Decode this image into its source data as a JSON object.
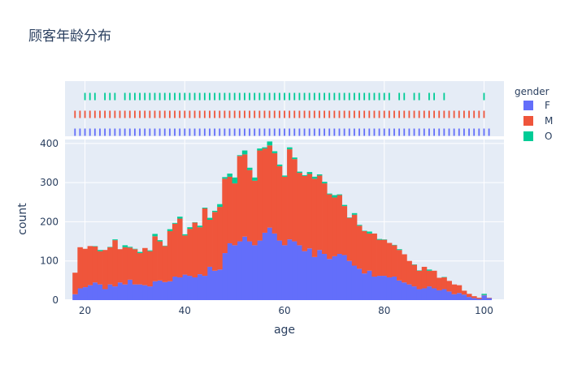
{
  "chart_data": {
    "type": "bar",
    "stacked": true,
    "title": "顾客年龄分布",
    "xlabel": "age",
    "ylabel": "count",
    "xlim": [
      16,
      104
    ],
    "ylim": [
      0,
      410
    ],
    "x_ticks": [
      20,
      40,
      60,
      80,
      100
    ],
    "y_ticks": [
      0,
      100,
      200,
      300,
      400
    ],
    "legend_title": "gender",
    "legend_position": "top-right",
    "grid": true,
    "categories": [
      18,
      19,
      20,
      21,
      22,
      23,
      24,
      25,
      26,
      27,
      28,
      29,
      30,
      31,
      32,
      33,
      34,
      35,
      36,
      37,
      38,
      39,
      40,
      41,
      42,
      43,
      44,
      45,
      46,
      47,
      48,
      49,
      50,
      51,
      52,
      53,
      54,
      55,
      56,
      57,
      58,
      59,
      60,
      61,
      62,
      63,
      64,
      65,
      66,
      67,
      68,
      69,
      70,
      71,
      72,
      73,
      74,
      75,
      76,
      77,
      78,
      79,
      80,
      81,
      82,
      83,
      84,
      85,
      86,
      87,
      88,
      89,
      90,
      91,
      92,
      93,
      94,
      95,
      96,
      97,
      98,
      99,
      100,
      101
    ],
    "series": [
      {
        "name": "F",
        "color": "#636efa",
        "values": [
          15,
          30,
          33,
          38,
          45,
          40,
          28,
          40,
          35,
          45,
          40,
          52,
          40,
          40,
          38,
          35,
          48,
          50,
          46,
          48,
          60,
          58,
          65,
          62,
          58,
          66,
          62,
          85,
          75,
          78,
          120,
          145,
          140,
          150,
          162,
          150,
          140,
          152,
          172,
          185,
          170,
          152,
          140,
          155,
          150,
          140,
          125,
          132,
          110,
          128,
          118,
          105,
          112,
          118,
          115,
          100,
          88,
          80,
          68,
          75,
          60,
          62,
          62,
          58,
          60,
          50,
          45,
          40,
          35,
          28,
          30,
          35,
          30,
          25,
          28,
          22,
          15,
          18,
          14,
          8,
          5,
          3,
          12,
          5
        ]
      },
      {
        "name": "M",
        "color": "#ef553b",
        "values": [
          55,
          105,
          98,
          100,
          92,
          85,
          100,
          95,
          118,
          85,
          95,
          82,
          90,
          80,
          95,
          90,
          115,
          100,
          92,
          128,
          135,
          150,
          100,
          120,
          140,
          120,
          172,
          120,
          150,
          160,
          190,
          170,
          158,
          218,
          210,
          182,
          165,
          230,
          215,
          210,
          205,
          190,
          175,
          230,
          210,
          185,
          192,
          190,
          200,
          190,
          180,
          165,
          150,
          150,
          125,
          110,
          130,
          110,
          108,
          95,
          110,
          92,
          92,
          88,
          80,
          78,
          72,
          60,
          55,
          47,
          55,
          40,
          45,
          32,
          30,
          27,
          25,
          20,
          10,
          8,
          5,
          3,
          1,
          1
        ]
      },
      {
        "name": "O",
        "color": "#00cc96",
        "values": [
          0,
          0,
          0,
          0,
          1,
          3,
          0,
          1,
          2,
          0,
          5,
          2,
          1,
          3,
          0,
          2,
          6,
          3,
          1,
          5,
          2,
          5,
          3,
          4,
          1,
          4,
          2,
          5,
          3,
          7,
          4,
          8,
          15,
          2,
          10,
          6,
          8,
          5,
          3,
          10,
          5,
          4,
          3,
          5,
          4,
          3,
          2,
          5,
          5,
          3,
          4,
          2,
          6,
          2,
          3,
          1,
          4,
          2,
          1,
          5,
          0,
          2,
          1,
          0,
          1,
          2,
          0,
          0,
          1,
          1,
          0,
          3,
          0,
          0,
          1,
          0,
          0,
          0,
          0,
          0,
          0,
          0,
          3,
          0
        ]
      }
    ],
    "rug_rows": [
      {
        "name": "F",
        "color": "#636efa",
        "x": [
          18,
          19,
          20,
          21,
          22,
          23,
          24,
          25,
          26,
          27,
          28,
          29,
          30,
          31,
          32,
          33,
          34,
          35,
          36,
          37,
          38,
          39,
          40,
          41,
          42,
          43,
          44,
          45,
          46,
          47,
          48,
          49,
          50,
          51,
          52,
          53,
          54,
          55,
          56,
          57,
          58,
          59,
          60,
          61,
          62,
          63,
          64,
          65,
          66,
          67,
          68,
          69,
          70,
          71,
          72,
          73,
          74,
          75,
          76,
          77,
          78,
          79,
          80,
          81,
          82,
          83,
          84,
          85,
          86,
          87,
          88,
          89,
          90,
          91,
          92,
          93,
          94,
          95,
          96,
          97,
          98,
          99,
          100,
          101
        ]
      },
      {
        "name": "M",
        "color": "#ef553b",
        "x": [
          18,
          19,
          20,
          21,
          22,
          23,
          24,
          25,
          26,
          27,
          28,
          29,
          30,
          31,
          32,
          33,
          34,
          35,
          36,
          37,
          38,
          39,
          40,
          41,
          42,
          43,
          44,
          45,
          46,
          47,
          48,
          49,
          50,
          51,
          52,
          53,
          54,
          55,
          56,
          57,
          58,
          59,
          60,
          61,
          62,
          63,
          64,
          65,
          66,
          67,
          68,
          69,
          70,
          71,
          72,
          73,
          74,
          75,
          76,
          77,
          78,
          79,
          80,
          81,
          82,
          83,
          84,
          85,
          86,
          87,
          88,
          89,
          90,
          91,
          92,
          93,
          94,
          95,
          96,
          97,
          98,
          99,
          100
        ]
      },
      {
        "name": "O",
        "color": "#00cc96",
        "x": [
          20,
          21,
          22,
          24,
          25,
          26,
          28,
          29,
          30,
          31,
          32,
          33,
          34,
          35,
          36,
          37,
          38,
          39,
          40,
          41,
          42,
          43,
          44,
          45,
          46,
          47,
          48,
          49,
          50,
          51,
          52,
          53,
          54,
          55,
          56,
          57,
          58,
          59,
          60,
          61,
          62,
          63,
          64,
          65,
          66,
          67,
          68,
          69,
          70,
          71,
          72,
          73,
          74,
          75,
          76,
          77,
          78,
          79,
          80,
          81,
          83,
          84,
          86,
          87,
          89,
          90,
          92,
          100
        ]
      }
    ]
  }
}
